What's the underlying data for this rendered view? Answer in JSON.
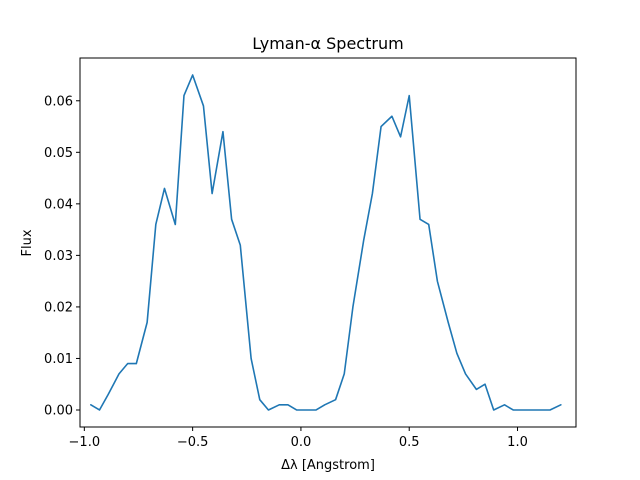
{
  "chart_data": {
    "type": "line",
    "title": "Lyman-α Spectrum",
    "xlabel": "Δλ [Angstrom]",
    "ylabel": "Flux",
    "xlim": [
      -1.02,
      1.27
    ],
    "ylim": [
      -0.0033,
      0.0683
    ],
    "xticks": [
      {
        "value": -1.0,
        "label": "−1.0"
      },
      {
        "value": -0.5,
        "label": "−0.5"
      },
      {
        "value": 0.0,
        "label": "0.0"
      },
      {
        "value": 0.5,
        "label": "0.5"
      },
      {
        "value": 1.0,
        "label": "1.0"
      }
    ],
    "yticks": [
      {
        "value": 0.0,
        "label": "0.00"
      },
      {
        "value": 0.01,
        "label": "0.01"
      },
      {
        "value": 0.02,
        "label": "0.02"
      },
      {
        "value": 0.03,
        "label": "0.03"
      },
      {
        "value": 0.04,
        "label": "0.04"
      },
      {
        "value": 0.05,
        "label": "0.05"
      },
      {
        "value": 0.06,
        "label": "0.06"
      }
    ],
    "grid": false,
    "series": [
      {
        "color": "#1f77b4",
        "x": [
          -0.97,
          -0.93,
          -0.89,
          -0.84,
          -0.8,
          -0.76,
          -0.71,
          -0.67,
          -0.63,
          -0.58,
          -0.54,
          -0.5,
          -0.45,
          -0.41,
          -0.36,
          -0.32,
          -0.28,
          -0.23,
          -0.19,
          -0.15,
          -0.1,
          -0.06,
          -0.02,
          0.03,
          0.07,
          0.11,
          0.16,
          0.2,
          0.24,
          0.29,
          0.33,
          0.37,
          0.42,
          0.46,
          0.5,
          0.55,
          0.59,
          0.63,
          0.68,
          0.72,
          0.76,
          0.81,
          0.85,
          0.89,
          0.94,
          0.98,
          1.02,
          1.07,
          1.11,
          1.15,
          1.2
        ],
        "y": [
          0.001,
          0.0,
          0.003,
          0.007,
          0.009,
          0.009,
          0.017,
          0.036,
          0.043,
          0.036,
          0.061,
          0.065,
          0.059,
          0.042,
          0.054,
          0.037,
          0.032,
          0.01,
          0.002,
          0.0,
          0.001,
          0.001,
          0.0,
          0.0,
          0.0,
          0.001,
          0.002,
          0.007,
          0.02,
          0.033,
          0.042,
          0.055,
          0.057,
          0.053,
          0.061,
          0.037,
          0.036,
          0.025,
          0.017,
          0.011,
          0.007,
          0.004,
          0.005,
          0.0,
          0.001,
          0.0,
          0.0,
          0.0,
          0.0,
          0.0,
          0.001
        ]
      }
    ]
  }
}
